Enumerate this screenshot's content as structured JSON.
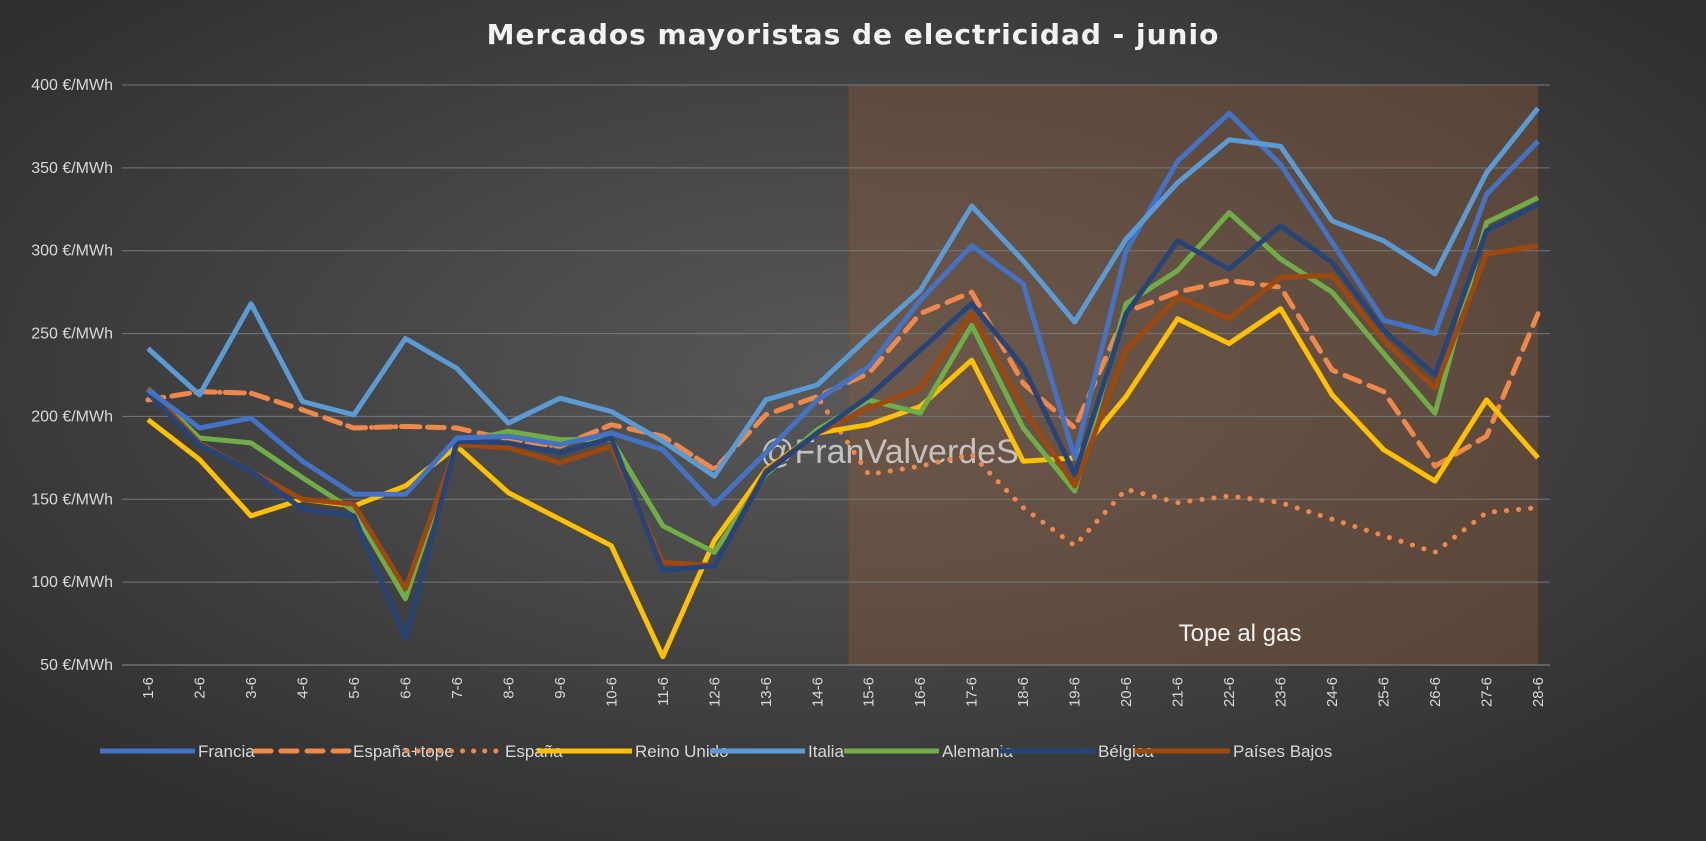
{
  "chart_data": {
    "type": "line",
    "title": "Mercados mayoristas de electricidad - junio",
    "xlabel": "",
    "ylabel": "",
    "ylim": [
      50,
      400
    ],
    "yticks": [
      "50 €/MWh",
      "100 €/MWh",
      "150 €/MWh",
      "200 €/MWh",
      "250 €/MWh",
      "300 €/MWh",
      "350 €/MWh",
      "400 €/MWh"
    ],
    "ytick_values": [
      50,
      100,
      150,
      200,
      250,
      300,
      350,
      400
    ],
    "grid": true,
    "legend_position": "bottom",
    "categories": [
      "1-6",
      "2-6",
      "3-6",
      "4-6",
      "5-6",
      "6-6",
      "7-6",
      "8-6",
      "9-6",
      "10-6",
      "11-6",
      "12-6",
      "13-6",
      "14-6",
      "15-6",
      "16-6",
      "17-6",
      "18-6",
      "19-6",
      "20-6",
      "21-6",
      "22-6",
      "23-6",
      "24-6",
      "25-6",
      "26-6",
      "27-6",
      "28-6"
    ],
    "shaded_region": {
      "from": "15-6",
      "to": "28-6",
      "label": "Tope al gas",
      "color": "#8a5a3a"
    },
    "watermark": "@FranValverdeS",
    "series": [
      {
        "name": "Francia",
        "color": "#4472C4",
        "style": "solid",
        "values": [
          216,
          193,
          199,
          173,
          153,
          153,
          187,
          188,
          183,
          190,
          180,
          147,
          178,
          210,
          230,
          270,
          303,
          280,
          175,
          300,
          354,
          383,
          352,
          305,
          258,
          250,
          334,
          366
        ]
      },
      {
        "name": "España+tope",
        "color": "#F0884A",
        "style": "dashed",
        "values": [
          210,
          215,
          214,
          204,
          193,
          194,
          193,
          186,
          182,
          195,
          188,
          168,
          201,
          212,
          226,
          262,
          275,
          220,
          193,
          263,
          275,
          282,
          278,
          228,
          215,
          170,
          188,
          262
        ]
      },
      {
        "name": "España",
        "color": "#F0884A",
        "style": "dotted",
        "values": [
          210,
          215,
          214,
          204,
          193,
          194,
          193,
          186,
          182,
          195,
          188,
          168,
          201,
          212,
          165,
          170,
          177,
          145,
          122,
          156,
          148,
          152,
          148,
          138,
          128,
          118,
          142,
          145
        ]
      },
      {
        "name": "Reino Unido",
        "color": "#FFC000",
        "style": "solid",
        "values": [
          198,
          174,
          140,
          150,
          146,
          158,
          182,
          154,
          138,
          122,
          55,
          125,
          168,
          190,
          195,
          206,
          234,
          173,
          175,
          212,
          259,
          244,
          265,
          213,
          180,
          161,
          210,
          175
        ]
      },
      {
        "name": "Italia",
        "color": "#5B9BD5",
        "style": "solid",
        "values": [
          241,
          213,
          268,
          209,
          201,
          247,
          229,
          196,
          211,
          203,
          185,
          164,
          210,
          219,
          248,
          276,
          327,
          294,
          257,
          307,
          341,
          367,
          363,
          318,
          306,
          286,
          347,
          386
        ]
      },
      {
        "name": "Alemania",
        "color": "#70AD47",
        "style": "solid",
        "values": [
          217,
          187,
          184,
          163,
          143,
          90,
          184,
          191,
          186,
          186,
          134,
          118,
          165,
          192,
          210,
          202,
          255,
          193,
          155,
          268,
          288,
          323,
          295,
          275,
          238,
          202,
          317,
          332
        ]
      },
      {
        "name": "Bélgica",
        "color": "#264478",
        "style": "solid",
        "values": [
          214,
          183,
          167,
          144,
          140,
          66,
          185,
          184,
          178,
          187,
          107,
          110,
          166,
          190,
          212,
          240,
          268,
          230,
          165,
          262,
          306,
          289,
          315,
          293,
          252,
          225,
          312,
          328
        ]
      },
      {
        "name": "Países Bajos",
        "color": "#9E480E",
        "style": "solid",
        "values": [
          217,
          184,
          167,
          150,
          147,
          96,
          183,
          181,
          172,
          182,
          112,
          110,
          167,
          190,
          205,
          217,
          262,
          205,
          158,
          240,
          272,
          259,
          284,
          285,
          246,
          217,
          298,
          303
        ]
      }
    ]
  }
}
